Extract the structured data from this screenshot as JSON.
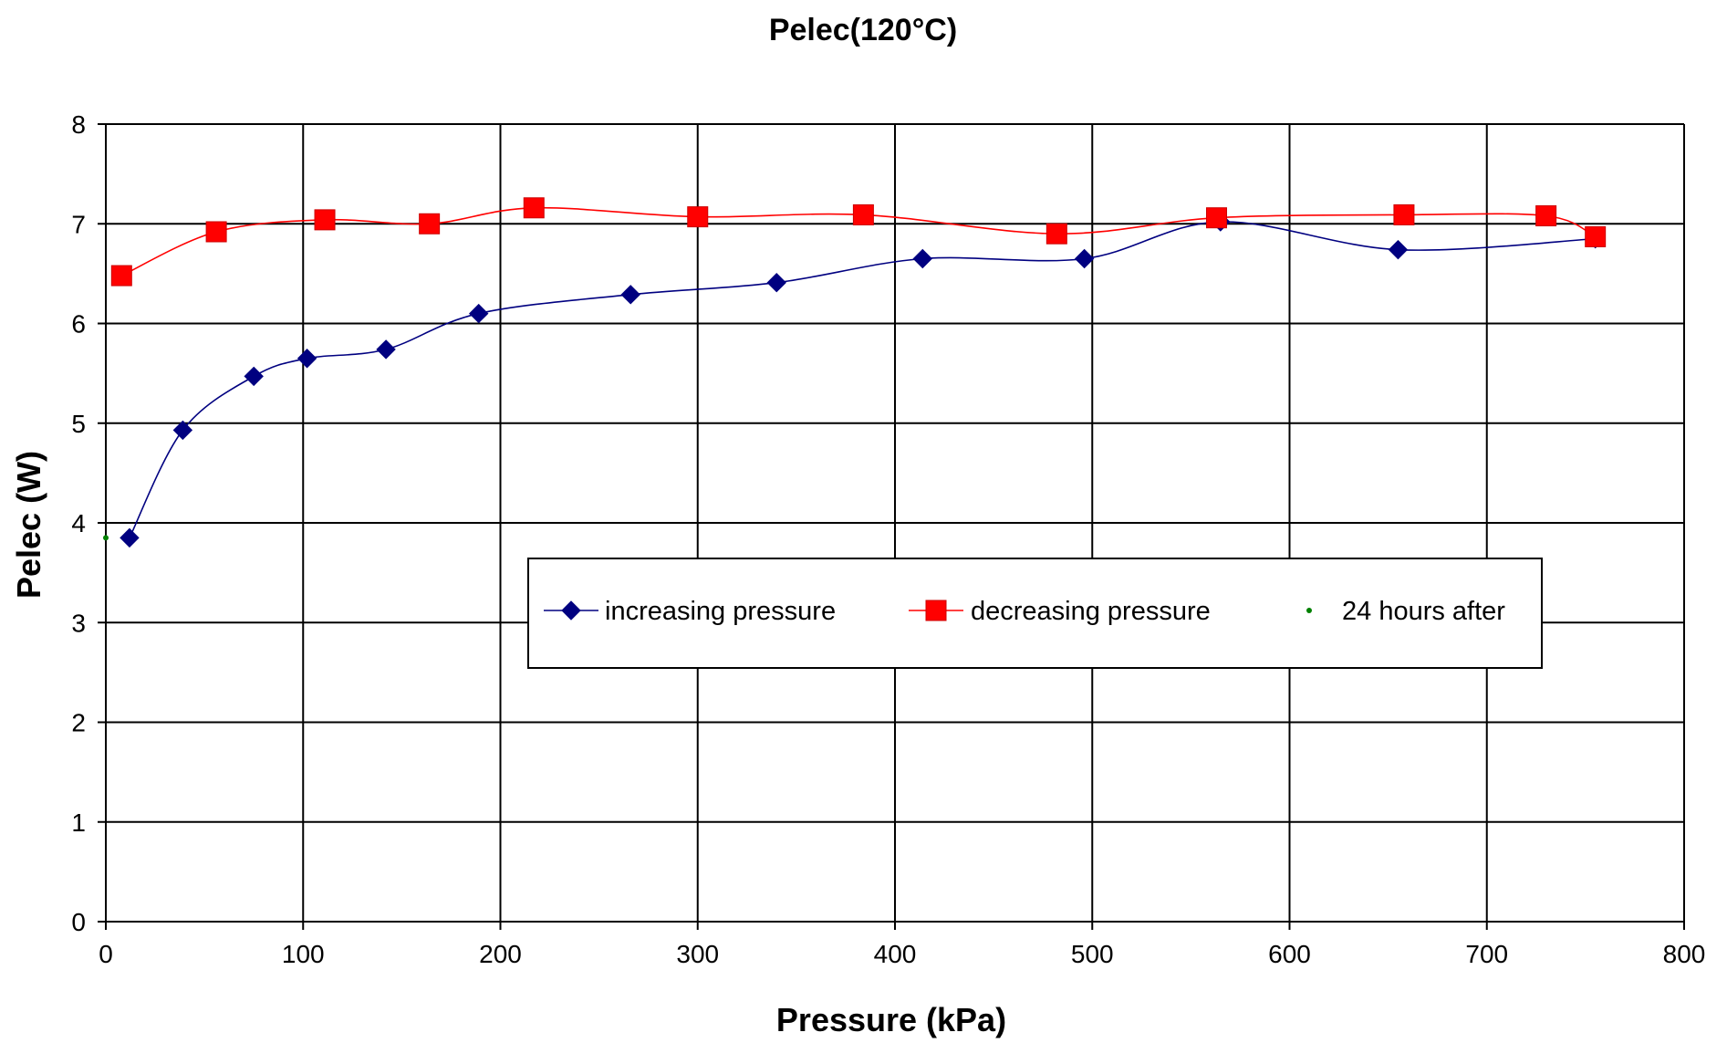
{
  "chart_data": {
    "type": "line",
    "title": "Pelec(120°C)",
    "xlabel": "Pressure (kPa)",
    "ylabel": "Pelec (W)",
    "xlim": [
      0,
      800
    ],
    "ylim": [
      0,
      8
    ],
    "xticks": [
      0,
      100,
      200,
      300,
      400,
      500,
      600,
      700,
      800
    ],
    "yticks": [
      0,
      1,
      2,
      3,
      4,
      5,
      6,
      7,
      8
    ],
    "grid": true,
    "legend_position": "inside-center-right",
    "series": [
      {
        "name": "increasing pressure",
        "color": "#000080",
        "marker": "diamond",
        "x": [
          12,
          39,
          75,
          102,
          142,
          189,
          266,
          340,
          414,
          496,
          565,
          655,
          755
        ],
        "y": [
          3.85,
          4.93,
          5.47,
          5.65,
          5.74,
          6.1,
          6.29,
          6.41,
          6.65,
          6.65,
          7.02,
          6.74,
          6.85
        ]
      },
      {
        "name": "decreasing pressure",
        "color": "#ff0000",
        "marker": "square",
        "x": [
          8,
          56,
          111,
          164,
          217,
          300,
          384,
          482,
          563,
          658,
          730,
          755
        ],
        "y": [
          6.48,
          6.92,
          7.04,
          7.0,
          7.16,
          7.07,
          7.09,
          6.9,
          7.06,
          7.09,
          7.08,
          6.87
        ]
      },
      {
        "name": "24 hours after",
        "color": "#008000",
        "marker": "dot",
        "x": [
          0
        ],
        "y": [
          3.85
        ]
      }
    ]
  }
}
